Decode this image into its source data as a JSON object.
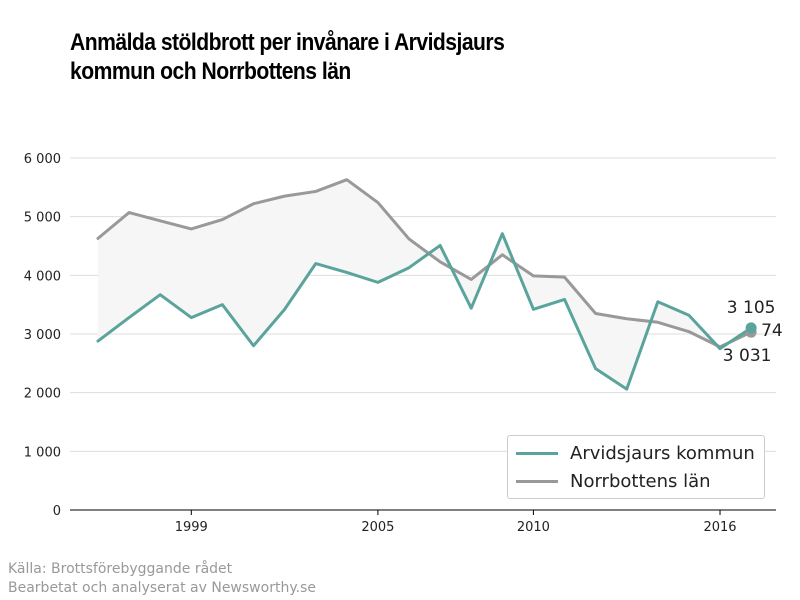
{
  "header": {
    "title_line1": "Anmälda stöldbrott per invånare i Arvidsjaurs",
    "title_line2": "kommun och Norrbottens län"
  },
  "footer": {
    "source_line1": "Källa: Brottsförebyggande rådet",
    "source_line2": "Bearbetat och analyserat av Newsworthy.se"
  },
  "chart_data": {
    "type": "line",
    "title": "Anmälda stöldbrott per invånare i Arvidsjaurs kommun och Norrbottens län",
    "x": [
      1996,
      1997,
      1998,
      1999,
      2000,
      2001,
      2002,
      2003,
      2004,
      2005,
      2006,
      2007,
      2008,
      2009,
      2010,
      2011,
      2012,
      2013,
      2014,
      2015,
      2016,
      2017
    ],
    "x_tick_labels": [
      "1999",
      "2005",
      "2010",
      "2016"
    ],
    "y_tick_labels": [
      "0",
      "1 000",
      "2 000",
      "3 000",
      "4 000",
      "5 000",
      "6 000"
    ],
    "ylim": [
      0,
      6000
    ],
    "xlim": [
      1996,
      2017
    ],
    "grid": true,
    "legend_position": "bottom-right",
    "fill_between": true,
    "series": [
      {
        "name": "Arvidsjaurs kommun",
        "color": "#5aa49b",
        "values": [
          2880,
          3280,
          3670,
          3280,
          3500,
          2800,
          3420,
          4200,
          4050,
          3880,
          4130,
          4510,
          3440,
          4710,
          3420,
          3590,
          2410,
          2060,
          3550,
          3320,
          2750,
          3105
        ]
      },
      {
        "name": "Norrbottens län",
        "color": "#999999",
        "values": [
          4630,
          5070,
          4930,
          4790,
          4950,
          5220,
          5350,
          5430,
          5630,
          5240,
          4620,
          4230,
          3930,
          4350,
          3990,
          3970,
          3350,
          3260,
          3200,
          3040,
          2780,
          3031
        ]
      }
    ],
    "end_labels": [
      "3 105",
      "74",
      "3 031"
    ],
    "fill_color": "#f6f6f6",
    "grid_color": "#dddddd"
  }
}
